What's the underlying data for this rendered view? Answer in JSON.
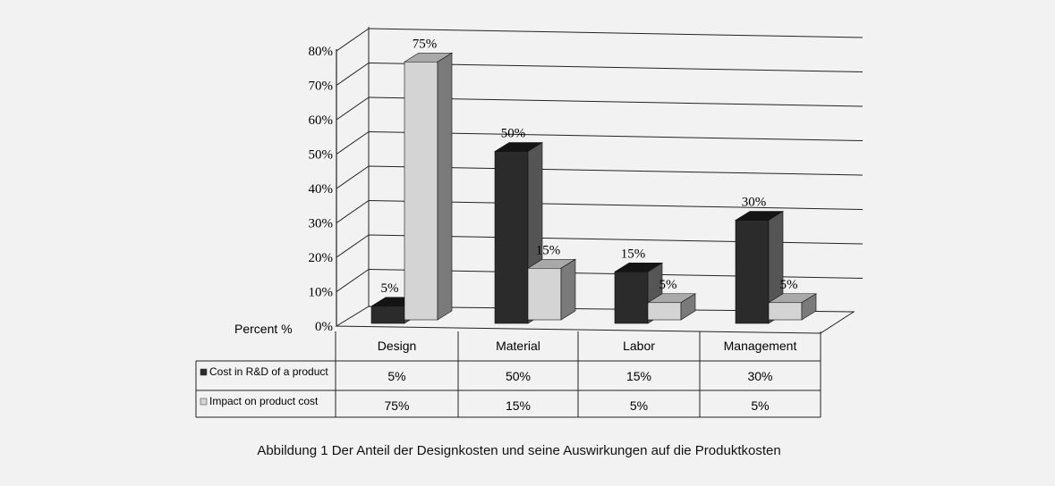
{
  "chart_data": {
    "type": "bar",
    "categories": [
      "Design",
      "Material",
      "Labor",
      "Management"
    ],
    "series": [
      {
        "name": "Cost in R&D of a product",
        "values": [
          5,
          50,
          15,
          30
        ],
        "value_labels": [
          "5%",
          "50%",
          "15%",
          "30%"
        ]
      },
      {
        "name": "Impact on product cost",
        "values": [
          75,
          15,
          5,
          5
        ],
        "value_labels": [
          "75%",
          "15%",
          "5%",
          "5%"
        ]
      }
    ],
    "ylim": [
      0,
      80
    ],
    "y_ticks": [
      "0%",
      "10%",
      "20%",
      "30%",
      "40%",
      "50%",
      "60%",
      "70%",
      "80%"
    ],
    "ylabel": "Percent %",
    "grid": true,
    "style": "3d",
    "data_table": true,
    "colors": {
      "series_front": [
        "#2b2b2b",
        "#d4d4d4"
      ],
      "series_top": [
        "#141414",
        "#a9a9a9"
      ],
      "series_side": [
        "#555555",
        "#7a7a7a"
      ],
      "background": "#f2f2f2"
    }
  },
  "caption": "Abbildung 1 Der Anteil der Designkosten und seine Auswirkungen auf die Produktkosten"
}
